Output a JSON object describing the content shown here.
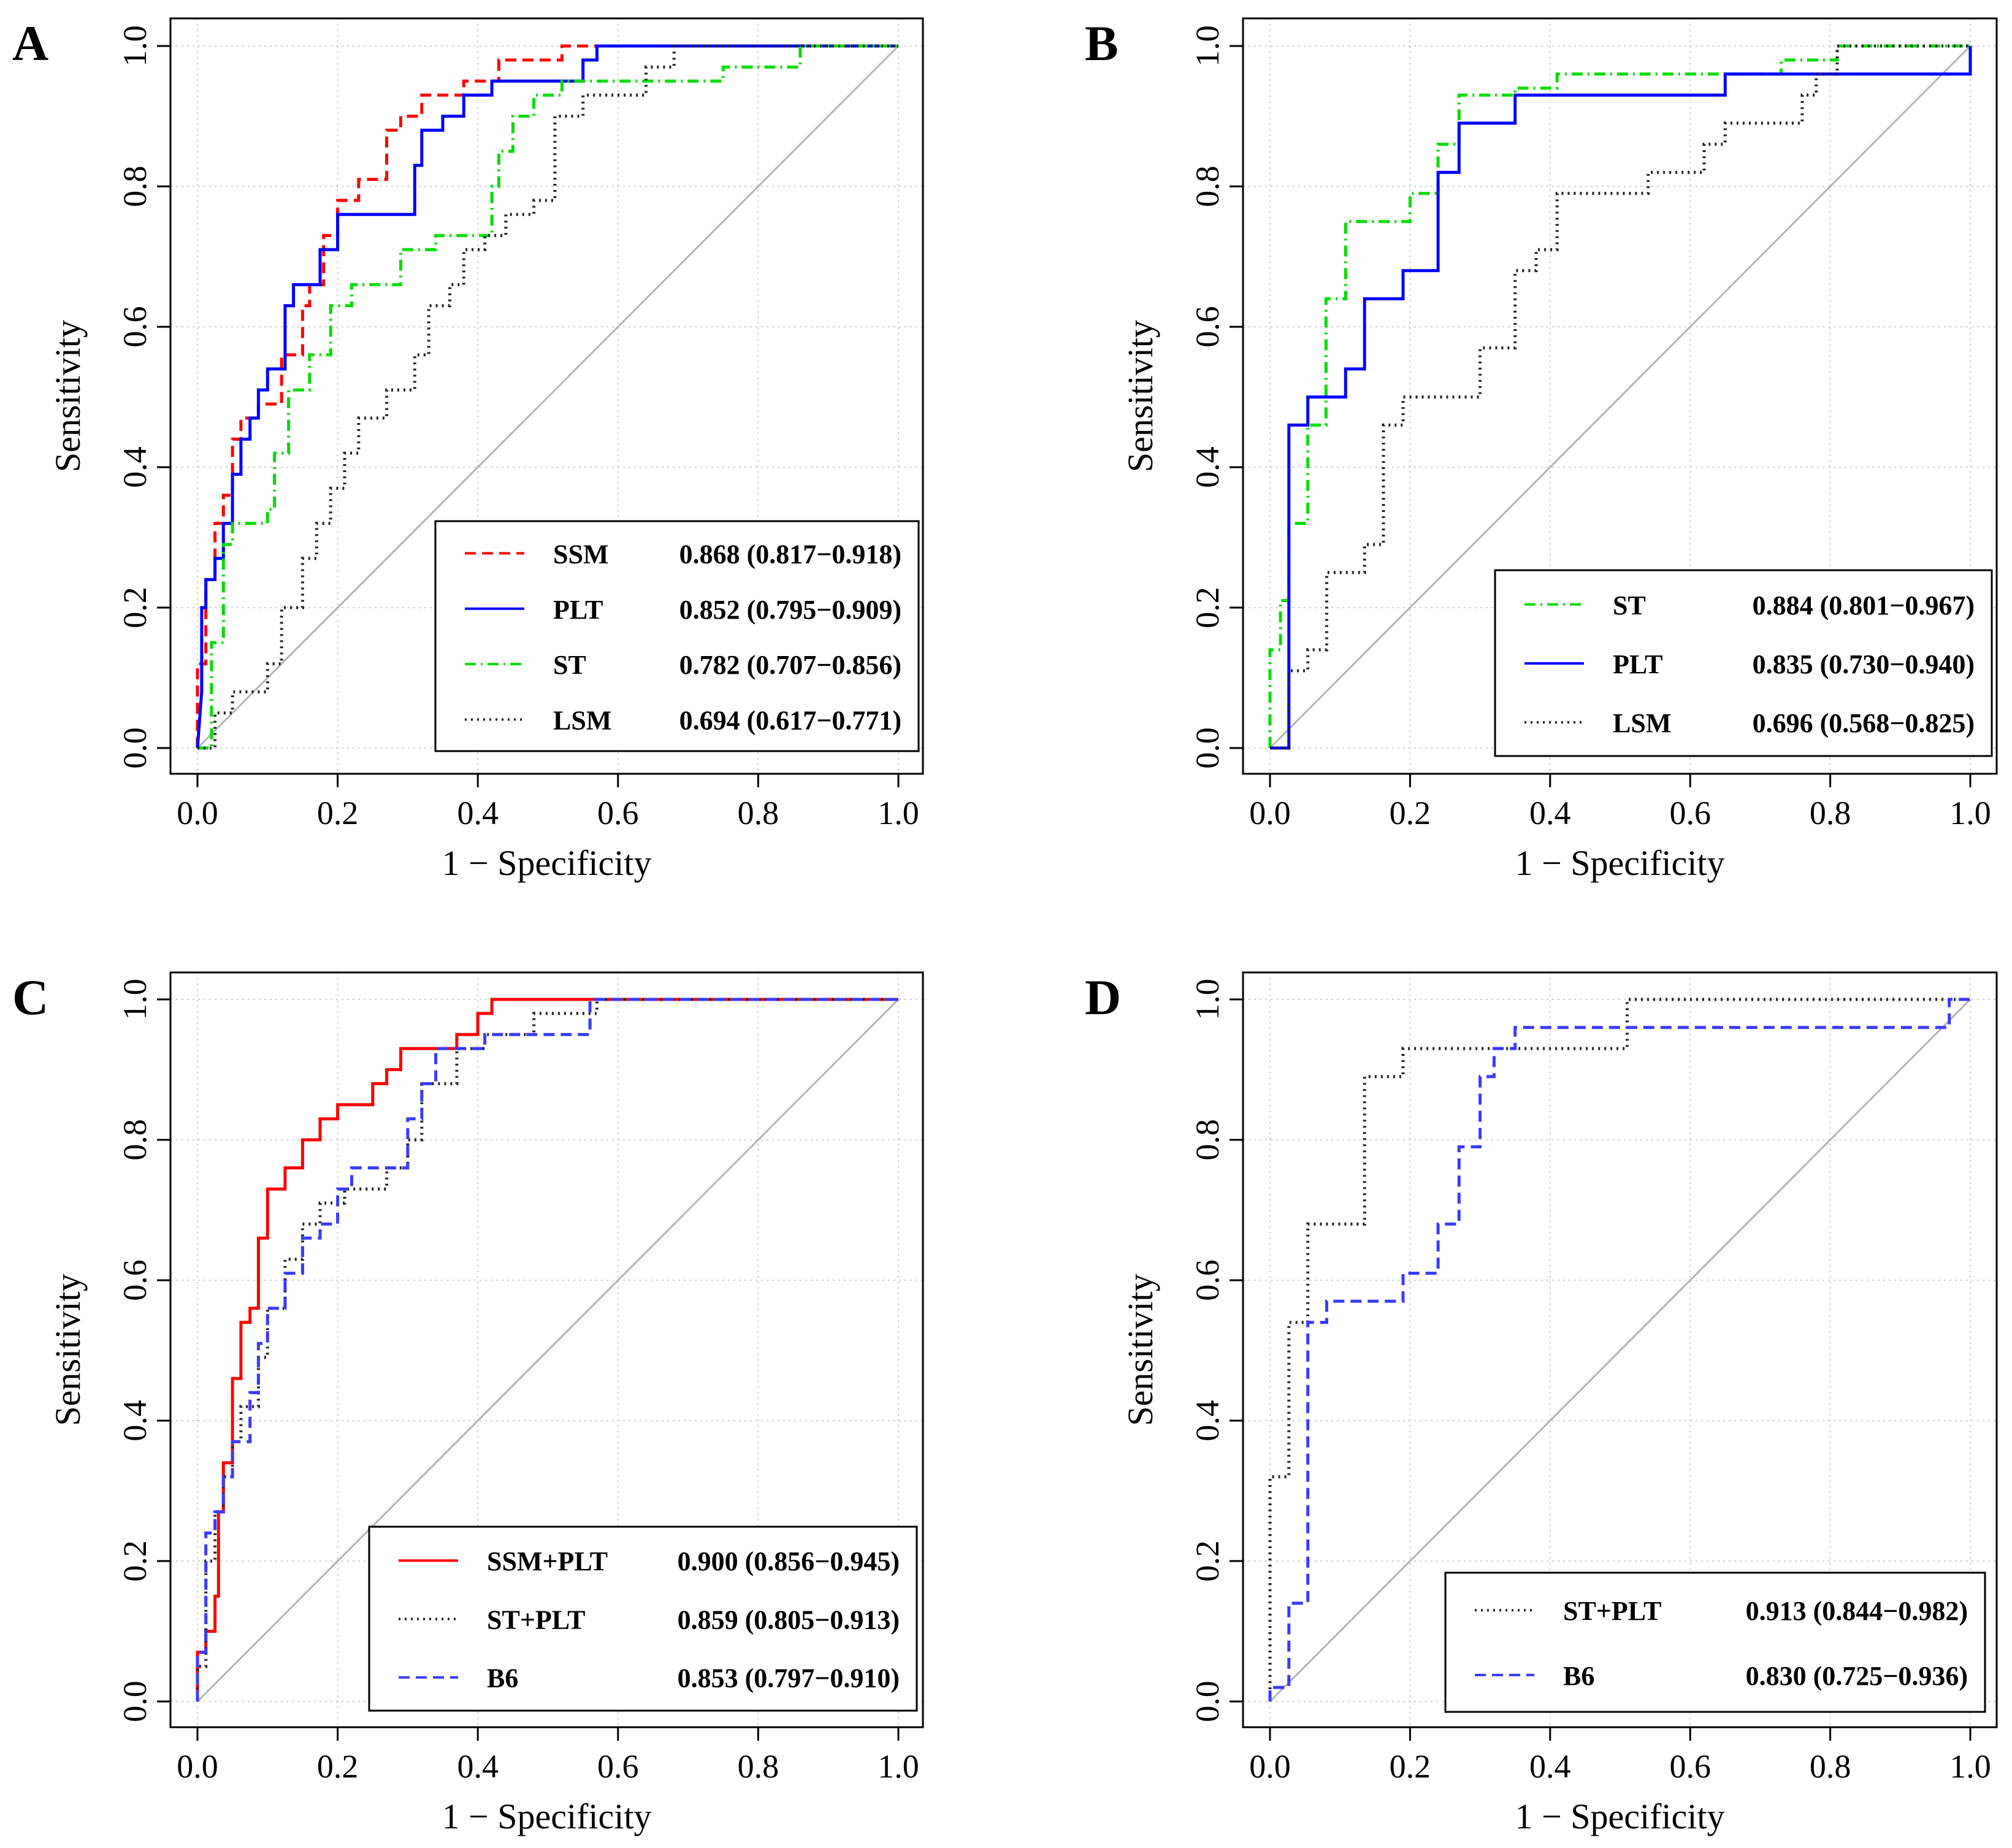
{
  "figure": {
    "xlabel": "1 − Specificity",
    "ylabel": "Sensitivity",
    "ticks": [
      "0.0",
      "0.2",
      "0.4",
      "0.6",
      "0.8",
      "1.0"
    ]
  },
  "chart_data": [
    {
      "panel": "A",
      "type": "line",
      "xlabel": "1 − Specificity",
      "ylabel": "Sensitivity",
      "xlim": [
        0,
        1
      ],
      "ylim": [
        0,
        1
      ],
      "grid": true,
      "legend_position": "bottom-right",
      "series": [
        {
          "name": "SSM",
          "auc": "0.868 (0.817−0.918)",
          "color": "#ff0000",
          "dash": "dashed",
          "x": [
            0,
            0,
            0.012,
            0.012,
            0.025,
            0.025,
            0.037,
            0.037,
            0.05,
            0.05,
            0.062,
            0.062,
            0.087,
            0.087,
            0.12,
            0.12,
            0.15,
            0.15,
            0.16,
            0.16,
            0.18,
            0.18,
            0.2,
            0.2,
            0.23,
            0.23,
            0.27,
            0.27,
            0.29,
            0.29,
            0.32,
            0.32,
            0.38,
            0.38,
            0.43,
            0.43,
            0.52,
            0.52,
            0.58,
            1.0
          ],
          "y": [
            0,
            0.12,
            0.12,
            0.24,
            0.24,
            0.32,
            0.32,
            0.36,
            0.36,
            0.44,
            0.44,
            0.47,
            0.47,
            0.49,
            0.49,
            0.56,
            0.56,
            0.63,
            0.63,
            0.66,
            0.66,
            0.73,
            0.73,
            0.78,
            0.78,
            0.81,
            0.81,
            0.88,
            0.88,
            0.9,
            0.9,
            0.93,
            0.93,
            0.95,
            0.95,
            0.98,
            0.98,
            1.0,
            1.0,
            1.0
          ]
        },
        {
          "name": "PLT",
          "auc": "0.852 (0.795−0.909)",
          "color": "#0000ff",
          "dash": "solid",
          "x": [
            0,
            0.006,
            0.006,
            0.012,
            0.012,
            0.025,
            0.025,
            0.037,
            0.037,
            0.05,
            0.05,
            0.062,
            0.062,
            0.075,
            0.075,
            0.087,
            0.087,
            0.1,
            0.1,
            0.125,
            0.125,
            0.137,
            0.137,
            0.175,
            0.175,
            0.2,
            0.2,
            0.31,
            0.31,
            0.32,
            0.32,
            0.35,
            0.35,
            0.38,
            0.38,
            0.42,
            0.42,
            0.55,
            0.55,
            0.57,
            0.57,
            1.0
          ],
          "y": [
            0,
            0.08,
            0.2,
            0.2,
            0.24,
            0.24,
            0.27,
            0.27,
            0.32,
            0.32,
            0.39,
            0.39,
            0.44,
            0.44,
            0.47,
            0.47,
            0.51,
            0.51,
            0.54,
            0.54,
            0.63,
            0.63,
            0.66,
            0.66,
            0.71,
            0.71,
            0.76,
            0.76,
            0.83,
            0.83,
            0.88,
            0.88,
            0.9,
            0.9,
            0.93,
            0.93,
            0.95,
            0.95,
            0.98,
            0.98,
            1.0,
            1.0
          ]
        },
        {
          "name": "ST",
          "auc": "0.782 (0.707−0.856)",
          "color": "#00dd00",
          "dash": "dotdash",
          "x": [
            0,
            0.02,
            0.02,
            0.037,
            0.037,
            0.05,
            0.05,
            0.1,
            0.1,
            0.11,
            0.11,
            0.13,
            0.13,
            0.16,
            0.16,
            0.19,
            0.19,
            0.22,
            0.22,
            0.29,
            0.29,
            0.34,
            0.34,
            0.42,
            0.42,
            0.43,
            0.43,
            0.45,
            0.45,
            0.48,
            0.48,
            0.52,
            0.52,
            0.75,
            0.75,
            0.86,
            0.86,
            1.0
          ],
          "y": [
            0,
            0,
            0.15,
            0.15,
            0.29,
            0.29,
            0.32,
            0.32,
            0.34,
            0.34,
            0.42,
            0.42,
            0.51,
            0.51,
            0.56,
            0.56,
            0.63,
            0.63,
            0.66,
            0.66,
            0.71,
            0.71,
            0.73,
            0.73,
            0.8,
            0.8,
            0.85,
            0.85,
            0.9,
            0.9,
            0.93,
            0.93,
            0.95,
            0.95,
            0.97,
            0.97,
            1.0,
            1.0
          ]
        },
        {
          "name": "LSM",
          "auc": "0.694 (0.617−0.771)",
          "color": "#222222",
          "dash": "dotted",
          "x": [
            0,
            0.025,
            0.025,
            0.05,
            0.05,
            0.1,
            0.1,
            0.12,
            0.12,
            0.15,
            0.15,
            0.17,
            0.17,
            0.19,
            0.19,
            0.21,
            0.21,
            0.23,
            0.23,
            0.27,
            0.27,
            0.31,
            0.31,
            0.33,
            0.33,
            0.36,
            0.36,
            0.38,
            0.38,
            0.41,
            0.41,
            0.44,
            0.44,
            0.48,
            0.48,
            0.51,
            0.51,
            0.55,
            0.55,
            0.64,
            0.64,
            0.68,
            0.68,
            0.72,
            0.72,
            1.0
          ],
          "y": [
            0,
            0,
            0.05,
            0.05,
            0.08,
            0.08,
            0.12,
            0.12,
            0.2,
            0.2,
            0.27,
            0.27,
            0.32,
            0.32,
            0.37,
            0.37,
            0.42,
            0.42,
            0.47,
            0.47,
            0.51,
            0.51,
            0.56,
            0.56,
            0.63,
            0.63,
            0.66,
            0.66,
            0.71,
            0.71,
            0.73,
            0.73,
            0.76,
            0.76,
            0.78,
            0.78,
            0.9,
            0.9,
            0.93,
            0.93,
            0.97,
            0.97,
            1.0,
            1.0,
            1.0,
            1.0
          ]
        }
      ]
    },
    {
      "panel": "B",
      "type": "line",
      "xlabel": "1 − Specificity",
      "ylabel": "Sensitivity",
      "xlim": [
        0,
        1
      ],
      "ylim": [
        0,
        1
      ],
      "grid": true,
      "legend_position": "bottom-right",
      "series": [
        {
          "name": "ST",
          "auc": "0.884 (0.801−0.967)",
          "color": "#00dd00",
          "dash": "dotdash",
          "x": [
            0,
            0,
            0.015,
            0.015,
            0.027,
            0.027,
            0.054,
            0.054,
            0.08,
            0.08,
            0.108,
            0.108,
            0.2,
            0.2,
            0.24,
            0.24,
            0.27,
            0.27,
            0.35,
            0.35,
            0.41,
            0.41,
            0.73,
            0.73,
            0.81,
            0.81,
            1.0
          ],
          "y": [
            0,
            0.14,
            0.14,
            0.21,
            0.21,
            0.32,
            0.32,
            0.46,
            0.46,
            0.64,
            0.64,
            0.75,
            0.75,
            0.79,
            0.79,
            0.86,
            0.86,
            0.93,
            0.93,
            0.94,
            0.94,
            0.96,
            0.96,
            0.98,
            0.98,
            1.0,
            1.0
          ]
        },
        {
          "name": "PLT",
          "auc": "0.835 (0.730−0.940)",
          "color": "#0000ff",
          "dash": "solid",
          "x": [
            0,
            0.027,
            0.027,
            0.054,
            0.054,
            0.108,
            0.108,
            0.135,
            0.135,
            0.19,
            0.19,
            0.22,
            0.22,
            0.24,
            0.24,
            0.27,
            0.27,
            0.35,
            0.35,
            0.65,
            0.65,
            1.0,
            1.0
          ],
          "y": [
            0,
            0,
            0.46,
            0.46,
            0.5,
            0.5,
            0.54,
            0.54,
            0.64,
            0.64,
            0.68,
            0.68,
            0.68,
            0.68,
            0.82,
            0.82,
            0.89,
            0.89,
            0.93,
            0.93,
            0.96,
            0.96,
            1.0
          ]
        },
        {
          "name": "LSM",
          "auc": "0.696 (0.568−0.825)",
          "color": "#222222",
          "dash": "dotted",
          "x": [
            0,
            0.027,
            0.027,
            0.054,
            0.054,
            0.081,
            0.081,
            0.135,
            0.135,
            0.162,
            0.162,
            0.19,
            0.19,
            0.22,
            0.22,
            0.3,
            0.3,
            0.35,
            0.35,
            0.38,
            0.38,
            0.41,
            0.41,
            0.54,
            0.54,
            0.62,
            0.62,
            0.65,
            0.65,
            0.76,
            0.76,
            0.78,
            0.78,
            0.81,
            0.81,
            1.0
          ],
          "y": [
            0,
            0,
            0.11,
            0.11,
            0.14,
            0.14,
            0.25,
            0.25,
            0.29,
            0.29,
            0.46,
            0.46,
            0.5,
            0.5,
            0.5,
            0.5,
            0.57,
            0.57,
            0.68,
            0.68,
            0.71,
            0.71,
            0.79,
            0.79,
            0.82,
            0.82,
            0.86,
            0.86,
            0.89,
            0.89,
            0.93,
            0.93,
            0.96,
            0.96,
            1.0,
            1.0
          ]
        }
      ]
    },
    {
      "panel": "C",
      "type": "line",
      "xlabel": "1 − Specificity",
      "ylabel": "Sensitivity",
      "xlim": [
        0,
        1
      ],
      "ylim": [
        0,
        1
      ],
      "grid": true,
      "legend_position": "bottom-right",
      "series": [
        {
          "name": "SSM+PLT",
          "auc": "0.900 (0.856−0.945)",
          "color": "#ff0000",
          "dash": "solid",
          "x": [
            0,
            0,
            0.012,
            0.012,
            0.025,
            0.025,
            0.03,
            0.03,
            0.037,
            0.037,
            0.05,
            0.05,
            0.062,
            0.062,
            0.075,
            0.075,
            0.087,
            0.087,
            0.1,
            0.1,
            0.125,
            0.125,
            0.15,
            0.15,
            0.175,
            0.175,
            0.2,
            0.2,
            0.25,
            0.25,
            0.27,
            0.27,
            0.29,
            0.29,
            0.37,
            0.37,
            0.4,
            0.4,
            0.42,
            0.42,
            1.0
          ],
          "y": [
            0,
            0.07,
            0.07,
            0.1,
            0.1,
            0.15,
            0.15,
            0.27,
            0.27,
            0.34,
            0.34,
            0.46,
            0.46,
            0.54,
            0.54,
            0.56,
            0.56,
            0.66,
            0.66,
            0.73,
            0.73,
            0.76,
            0.76,
            0.8,
            0.8,
            0.83,
            0.83,
            0.85,
            0.85,
            0.88,
            0.88,
            0.9,
            0.9,
            0.93,
            0.93,
            0.95,
            0.95,
            0.98,
            0.98,
            1.0,
            1.0
          ]
        },
        {
          "name": "ST+PLT",
          "auc": "0.859 (0.805−0.913)",
          "color": "#222222",
          "dash": "dotted",
          "x": [
            0,
            0,
            0.012,
            0.012,
            0.025,
            0.025,
            0.037,
            0.037,
            0.05,
            0.05,
            0.062,
            0.062,
            0.087,
            0.087,
            0.1,
            0.1,
            0.125,
            0.125,
            0.15,
            0.15,
            0.175,
            0.175,
            0.21,
            0.21,
            0.27,
            0.27,
            0.3,
            0.3,
            0.32,
            0.32,
            0.37,
            0.37,
            0.41,
            0.41,
            0.48,
            0.48,
            0.57,
            0.57,
            1.0
          ],
          "y": [
            0,
            0.05,
            0.05,
            0.2,
            0.2,
            0.27,
            0.27,
            0.32,
            0.32,
            0.37,
            0.37,
            0.42,
            0.42,
            0.49,
            0.49,
            0.56,
            0.56,
            0.63,
            0.63,
            0.68,
            0.68,
            0.71,
            0.71,
            0.73,
            0.73,
            0.76,
            0.76,
            0.8,
            0.8,
            0.88,
            0.88,
            0.93,
            0.93,
            0.95,
            0.95,
            0.98,
            0.98,
            1.0,
            1.0
          ]
        },
        {
          "name": "B6",
          "auc": "0.853 (0.797−0.910)",
          "color": "#3a3aff",
          "dash": "dashed",
          "x": [
            0,
            0,
            0.012,
            0.012,
            0.025,
            0.025,
            0.037,
            0.037,
            0.05,
            0.05,
            0.075,
            0.075,
            0.087,
            0.087,
            0.1,
            0.1,
            0.125,
            0.125,
            0.15,
            0.15,
            0.175,
            0.175,
            0.2,
            0.2,
            0.22,
            0.22,
            0.3,
            0.3,
            0.32,
            0.32,
            0.34,
            0.34,
            0.41,
            0.41,
            0.56,
            0.56,
            1.0
          ],
          "y": [
            0,
            0.07,
            0.07,
            0.24,
            0.24,
            0.27,
            0.27,
            0.32,
            0.32,
            0.37,
            0.37,
            0.44,
            0.44,
            0.51,
            0.51,
            0.56,
            0.56,
            0.61,
            0.61,
            0.66,
            0.66,
            0.68,
            0.68,
            0.73,
            0.73,
            0.76,
            0.76,
            0.83,
            0.83,
            0.88,
            0.88,
            0.93,
            0.93,
            0.95,
            0.95,
            1.0,
            1.0
          ]
        }
      ]
    },
    {
      "panel": "D",
      "type": "line",
      "xlabel": "1 − Specificity",
      "ylabel": "Sensitivity",
      "xlim": [
        0,
        1
      ],
      "ylim": [
        0,
        1
      ],
      "grid": true,
      "legend_position": "bottom-right",
      "series": [
        {
          "name": "ST+PLT",
          "auc": "0.913 (0.844−0.982)",
          "color": "#222222",
          "dash": "dotted",
          "x": [
            0,
            0,
            0.027,
            0.027,
            0.054,
            0.054,
            0.135,
            0.135,
            0.19,
            0.19,
            0.22,
            0.22,
            0.51,
            0.51,
            1.0
          ],
          "y": [
            0,
            0.32,
            0.32,
            0.54,
            0.54,
            0.68,
            0.68,
            0.89,
            0.89,
            0.93,
            0.93,
            0.93,
            0.93,
            1.0,
            1.0
          ]
        },
        {
          "name": "B6",
          "auc": "0.830 (0.725−0.936)",
          "color": "#3a3aff",
          "dash": "dashed",
          "x": [
            0,
            0,
            0.027,
            0.027,
            0.054,
            0.054,
            0.081,
            0.081,
            0.19,
            0.19,
            0.24,
            0.24,
            0.27,
            0.27,
            0.3,
            0.3,
            0.32,
            0.32,
            0.35,
            0.35,
            0.51,
            0.51,
            0.97,
            0.97,
            1.0,
            1.0
          ],
          "y": [
            0,
            0.02,
            0.02,
            0.14,
            0.14,
            0.54,
            0.54,
            0.57,
            0.57,
            0.61,
            0.61,
            0.68,
            0.68,
            0.79,
            0.79,
            0.89,
            0.89,
            0.93,
            0.93,
            0.96,
            0.96,
            0.96,
            0.96,
            1.0,
            1.0,
            1.0
          ]
        }
      ]
    }
  ]
}
